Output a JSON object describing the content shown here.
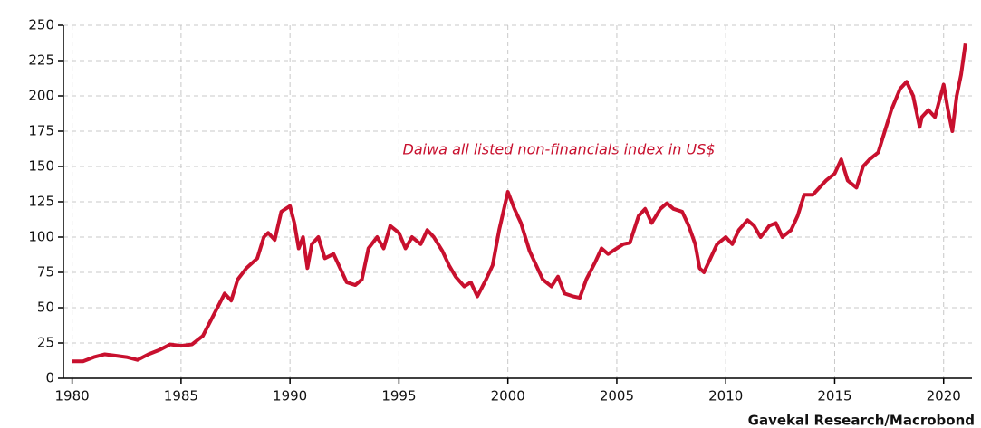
{
  "chart_data": {
    "type": "line",
    "annotation": "Daiwa all listed non-financials index in US$",
    "source": "Gavekal Research/Macrobond",
    "x": [
      1980,
      1980.5,
      1981,
      1981.5,
      1982,
      1982.5,
      1983,
      1983.5,
      1984,
      1984.5,
      1985,
      1985.5,
      1986,
      1986.5,
      1987,
      1987.3,
      1987.6,
      1988,
      1988.5,
      1988.8,
      1989,
      1989.3,
      1989.6,
      1990,
      1990.2,
      1990.4,
      1990.6,
      1990.8,
      1991,
      1991.3,
      1991.6,
      1992,
      1992.3,
      1992.6,
      1993,
      1993.3,
      1993.6,
      1994,
      1994.3,
      1994.6,
      1995,
      1995.3,
      1995.6,
      1996,
      1996.3,
      1996.6,
      1997,
      1997.3,
      1997.6,
      1998,
      1998.3,
      1998.6,
      1999,
      1999.3,
      1999.6,
      2000,
      2000.3,
      2000.6,
      2001,
      2001.3,
      2001.6,
      2002,
      2002.3,
      2002.6,
      2003,
      2003.3,
      2003.6,
      2004,
      2004.3,
      2004.6,
      2005,
      2005.3,
      2005.6,
      2006,
      2006.3,
      2006.6,
      2007,
      2007.3,
      2007.6,
      2008,
      2008.3,
      2008.6,
      2008.8,
      2009,
      2009.3,
      2009.6,
      2010,
      2010.3,
      2010.6,
      2011,
      2011.3,
      2011.6,
      2012,
      2012.3,
      2012.6,
      2013,
      2013.3,
      2013.6,
      2014,
      2014.3,
      2014.6,
      2015,
      2015.3,
      2015.6,
      2016,
      2016.3,
      2016.6,
      2017,
      2017.3,
      2017.6,
      2018,
      2018.3,
      2018.6,
      2018.9,
      2019,
      2019.3,
      2019.6,
      2020,
      2020.2,
      2020.4,
      2020.6,
      2020.8,
      2021
    ],
    "series": [
      {
        "color": "#c8102e",
        "values": [
          12,
          12,
          15,
          17,
          16,
          15,
          13,
          17,
          20,
          24,
          23,
          24,
          30,
          45,
          60,
          55,
          70,
          78,
          85,
          100,
          103,
          98,
          118,
          122,
          110,
          92,
          100,
          78,
          95,
          100,
          85,
          88,
          78,
          68,
          66,
          70,
          92,
          100,
          92,
          108,
          103,
          92,
          100,
          95,
          105,
          100,
          90,
          80,
          72,
          65,
          68,
          58,
          70,
          80,
          105,
          132,
          120,
          110,
          90,
          80,
          70,
          65,
          72,
          60,
          58,
          57,
          70,
          82,
          92,
          88,
          92,
          95,
          96,
          115,
          120,
          110,
          120,
          124,
          120,
          118,
          108,
          95,
          78,
          75,
          85,
          95,
          100,
          95,
          105,
          112,
          108,
          100,
          108,
          110,
          100,
          105,
          115,
          130,
          130,
          135,
          140,
          145,
          155,
          140,
          135,
          150,
          155,
          160,
          175,
          190,
          205,
          210,
          200,
          178,
          185,
          190,
          185,
          208,
          190,
          175,
          200,
          215,
          237
        ]
      }
    ],
    "xlim": [
      1979.6,
      2021.3
    ],
    "ylim": [
      0,
      250
    ],
    "xticks": [
      1980,
      1985,
      1990,
      1995,
      2000,
      2005,
      2010,
      2015,
      2020
    ],
    "yticks": [
      0,
      25,
      50,
      75,
      100,
      125,
      150,
      175,
      200,
      225,
      250
    ],
    "grid": true
  }
}
